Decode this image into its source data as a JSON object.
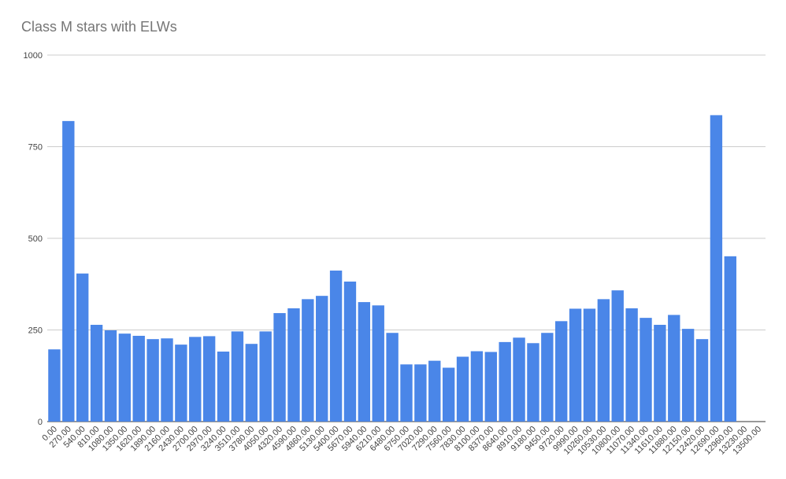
{
  "chart_data": {
    "type": "bar",
    "title": "Class M stars with ELWs",
    "categories": [
      "0.00",
      "270.00",
      "540.00",
      "810.00",
      "1080.00",
      "1350.00",
      "1620.00",
      "1890.00",
      "2160.00",
      "2430.00",
      "2700.00",
      "2970.00",
      "3240.00",
      "3510.00",
      "3780.00",
      "4050.00",
      "4320.00",
      "4590.00",
      "4860.00",
      "5130.00",
      "5400.00",
      "5670.00",
      "5940.00",
      "6210.00",
      "6480.00",
      "6750.00",
      "7020.00",
      "7290.00",
      "7560.00",
      "7830.00",
      "8100.00",
      "8370.00",
      "8640.00",
      "8910.00",
      "9180.00",
      "9450.00",
      "9720.00",
      "9990.00",
      "10260.00",
      "10530.00",
      "10800.00",
      "11070.00",
      "11340.00",
      "11610.00",
      "11880.00",
      "12150.00",
      "12420.00",
      "12690.00",
      "12960.00",
      "13230.00",
      "13500.00"
    ],
    "values": [
      197,
      820,
      404,
      264,
      249,
      240,
      234,
      225,
      227,
      210,
      231,
      233,
      191,
      246,
      212,
      246,
      296,
      309,
      334,
      343,
      412,
      382,
      326,
      317,
      242,
      156,
      156,
      166,
      147,
      177,
      192,
      190,
      217,
      229,
      214,
      242,
      274,
      308,
      308,
      334,
      358,
      309,
      283,
      264,
      291,
      253,
      225,
      836,
      451,
      null,
      null
    ],
    "color": "#4a86e8",
    "ylim": [
      0,
      1000
    ],
    "yticks": [
      0,
      250,
      500,
      750,
      1000
    ],
    "grid": true
  }
}
